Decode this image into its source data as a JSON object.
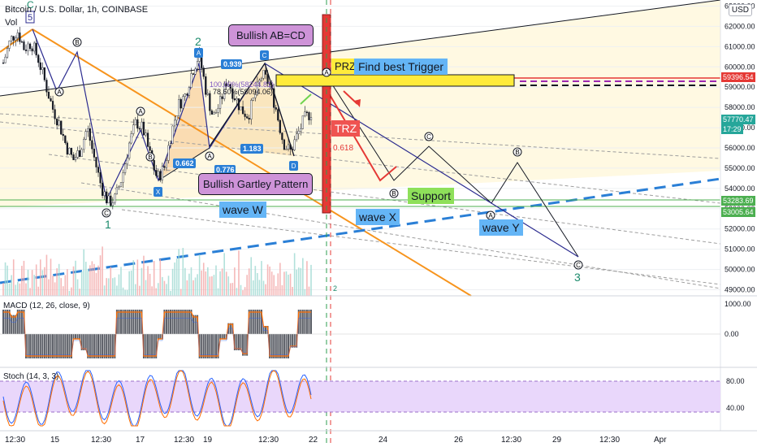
{
  "header": {
    "symbol_title": "Bitcoin / U.S. Dollar, 1h, COINBASE",
    "vol_label": "Vol",
    "currency_button": "USD"
  },
  "indicators": {
    "macd_label": "MACD (12, 26, close, 9)",
    "stoch_label": "Stoch (14, 3, 3)"
  },
  "price_axis": {
    "ticks": [
      "63000.00",
      "62000.00",
      "61000.00",
      "60000.00",
      "59000.00",
      "58000.00",
      "57000.00",
      "56000.00",
      "55000.00",
      "54000.00",
      "53000.00",
      "52000.00",
      "51000.00",
      "50000.00",
      "49000.00"
    ],
    "macd_ticks": [
      "1000.00",
      "0.00"
    ],
    "stoch_ticks": [
      "80.00",
      "40.00"
    ]
  },
  "price_tags": {
    "upper_red": "59396.54",
    "last_price": "57770.47",
    "countdown": "17:29",
    "support_upper": "53283.69",
    "support_lower": "53005.64"
  },
  "time_axis": {
    "labels": [
      "12:30",
      "15",
      "12:30",
      "17",
      "12:30",
      "19",
      "12:30",
      "22",
      "24",
      "26",
      "12:30",
      "29",
      "12:30",
      "Apr"
    ]
  },
  "annotations": {
    "bullish_abcd": "Bullish AB=CD",
    "prz": "PRZ",
    "find_trigger": "Find best Trigger",
    "trz": "TRZ",
    "trz_value": "0.618",
    "bullish_gartley": "Bullish Gartley Pattern",
    "support": "Support",
    "wave_w": "wave W",
    "wave_x": "wave X",
    "wave_y": "wave Y",
    "fib_0939": "0.939",
    "fib_0662": "0.662",
    "fib_1183": "1.183",
    "fib_0776": "0.776",
    "fib_100": "100.00%(58244.81)",
    "fib_786": "78.60%(58094.06)",
    "wave_c_top": "C",
    "wave_5": "5",
    "wave_2": "2",
    "wave_1": "1",
    "wave_3": "3",
    "wave_2_small": "2"
  },
  "chart_data": {
    "type": "candlestick",
    "title": "Bitcoin / U.S. Dollar, 1h, COINBASE",
    "x_labels": [
      "12:30",
      "15",
      "12:30",
      "17",
      "12:30",
      "19",
      "12:30",
      "22",
      "24",
      "26",
      "12:30",
      "29",
      "12:30",
      "Apr"
    ],
    "ylim": [
      48700,
      63300
    ],
    "key_levels": {
      "resistance": 59396.54,
      "last": 57770.47,
      "support_upper": 53283.69,
      "support_lower": 53005.64
    },
    "price_path": [
      60200,
      61300,
      61800,
      60900,
      61200,
      60400,
      59200,
      58000,
      57200,
      56100,
      55400,
      55900,
      57000,
      55500,
      54100,
      53300,
      53500,
      54600,
      56200,
      57300,
      56900,
      55600,
      54500,
      55000,
      56700,
      58100,
      58600,
      59800,
      60600,
      58800,
      57500,
      58200,
      59400,
      58600,
      57900,
      57600,
      58600,
      59600,
      59200,
      57900,
      56300,
      55800,
      56600,
      57400,
      57770
    ],
    "projection_wave_y": [
      [
        59000,
        "PRZ"
      ],
      [
        54200,
        "B"
      ],
      [
        56200,
        "C"
      ],
      [
        53400,
        "X"
      ],
      [
        55200,
        "B"
      ],
      [
        50400,
        "C"
      ]
    ],
    "macd": {
      "levels": [
        "1000.00",
        "0.00"
      ]
    },
    "stoch": {
      "levels": [
        "80.00",
        "40.00"
      ]
    }
  }
}
